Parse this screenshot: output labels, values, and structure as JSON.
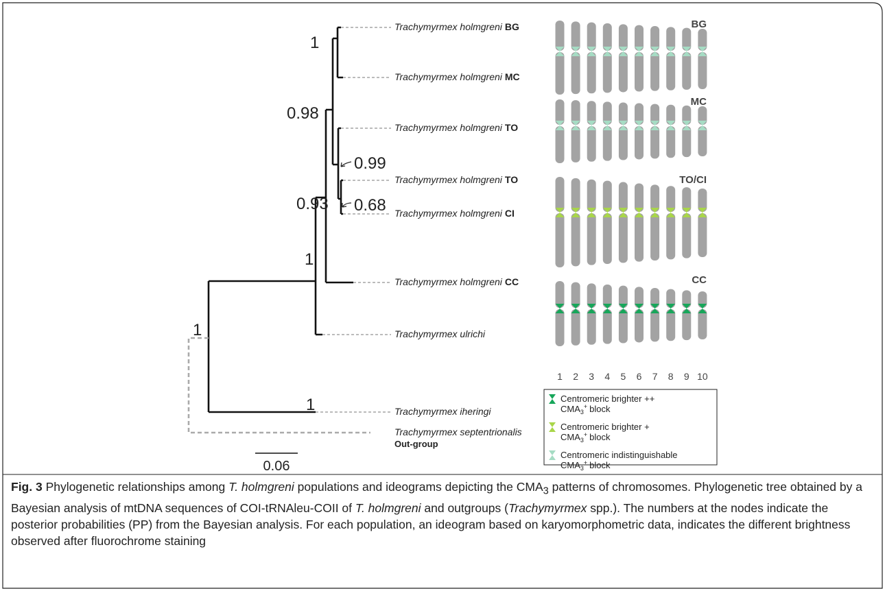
{
  "figure": {
    "leaves": [
      {
        "name": "Trachymyrmex holmgreni",
        "code": "BG"
      },
      {
        "name": "Trachymyrmex holmgreni",
        "code": "MC"
      },
      {
        "name": "Trachymyrmex holmgreni",
        "code": "TO"
      },
      {
        "name": "Trachymyrmex holmgreni",
        "code": "TO"
      },
      {
        "name": "Trachymyrmex holmgreni",
        "code": "CI"
      },
      {
        "name": "Trachymyrmex holmgreni",
        "code": "CC"
      },
      {
        "name": "Trachymyrmex ulrichi"
      },
      {
        "name": "Trachymyrmex iheringi"
      },
      {
        "name": "Trachymyrmex septentrionalis"
      }
    ],
    "outgroup_label": "Out-group",
    "support": [
      1,
      0.98,
      0.99,
      0.93,
      0.68,
      1,
      1,
      1
    ],
    "scale_bar": 0.06,
    "ideograms": [
      {
        "label": "BG",
        "centromere_color": "#a6dcc4"
      },
      {
        "label": "MC",
        "centromere_color": "#a6dcc4"
      },
      {
        "label": "TO/CI",
        "centromere_color": "#a9d64a"
      },
      {
        "label": "CC",
        "centromere_color": "#17a65a"
      }
    ],
    "chromosome_numbers": [
      1,
      2,
      3,
      4,
      5,
      6,
      7,
      8,
      9,
      10
    ],
    "legend": [
      {
        "line1": "Centromeric brighter ++",
        "prefix": "CMA",
        "subscript": "3",
        "superscript": "+",
        "suffix": "block",
        "color": "#17a65a"
      },
      {
        "line1": "Centromeric brighter +",
        "prefix": "CMA",
        "subscript": "3",
        "superscript": "+",
        "suffix": "block",
        "color": "#a9d64a"
      },
      {
        "line1": "Centromeric indistinguishable",
        "prefix": "CMA",
        "subscript": "3",
        "superscript": "+",
        "suffix": "block",
        "color": "#a6dcc4"
      }
    ]
  },
  "caption": {
    "label": "Fig. 3",
    "parts": [
      " Phylogenetic relationships among ",
      "T. holmgreni",
      " populations and ideograms depicting the CMA",
      "3",
      " patterns of chromosomes. Phylogenetic tree obtained by a Bayesian analysis of mtDNA sequences of COI-tRNAleu-COII of ",
      "T. holmgreni",
      " and outgroups (",
      "Trachymyrmex",
      " spp.). The numbers at the nodes indicate the posterior probabilities (PP) from the Bayesian analysis. For each population, an ideogram based on karyomorphometric data, indicates the different brightness observed after fluorochrome staining"
    ]
  }
}
